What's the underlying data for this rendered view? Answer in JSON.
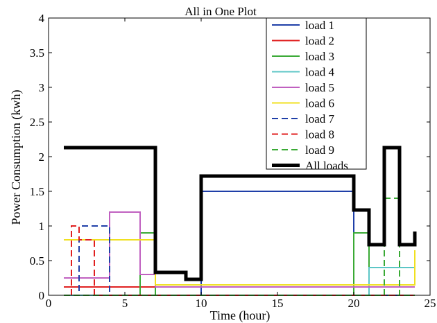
{
  "chart_data": {
    "type": "line",
    "title": "All in One Plot",
    "xlabel": "Time (hour)",
    "ylabel": "Power Consumption (kwh)",
    "xlim": [
      0,
      25
    ],
    "ylim": [
      0,
      4
    ],
    "xticks": [
      0,
      5,
      10,
      15,
      20,
      25
    ],
    "yticks": [
      0,
      0.5,
      1,
      1.5,
      2,
      2.5,
      3,
      3.5,
      4
    ],
    "ytick_labels": [
      "0",
      "0.5",
      "1",
      "1.5",
      "2",
      "2.5",
      "3",
      "3.5",
      "4"
    ],
    "grid": false,
    "legend_position": "top-right",
    "series": [
      {
        "name": "load 1",
        "color": "#1f3fa8",
        "dash": "solid",
        "width": 2,
        "x": [
          1,
          10,
          10,
          20,
          20,
          24
        ],
        "y": [
          0,
          0,
          1.5,
          1.5,
          0,
          0
        ]
      },
      {
        "name": "load 2",
        "color": "#e02020",
        "dash": "solid",
        "width": 2,
        "x": [
          1,
          24
        ],
        "y": [
          0.12,
          0.12
        ]
      },
      {
        "name": "load 3",
        "color": "#3aaa35",
        "dash": "solid",
        "width": 2,
        "x": [
          1,
          6,
          6,
          7,
          7,
          20,
          20,
          21,
          21,
          24
        ],
        "y": [
          0,
          0,
          0.9,
          0.9,
          0,
          0,
          0.9,
          0.9,
          0,
          0
        ]
      },
      {
        "name": "load 4",
        "color": "#5cc6c6",
        "dash": "solid",
        "width": 2,
        "x": [
          1,
          21,
          21,
          24
        ],
        "y": [
          0,
          0,
          0.4,
          0.4
        ]
      },
      {
        "name": "load 5",
        "color": "#c060c0",
        "dash": "solid",
        "width": 2,
        "x": [
          1,
          4,
          4,
          6,
          6,
          7,
          7,
          24
        ],
        "y": [
          0.25,
          0.25,
          1.2,
          1.2,
          0.3,
          0.3,
          0.12,
          0.12
        ]
      },
      {
        "name": "load 6",
        "color": "#f0e020",
        "dash": "solid",
        "width": 2,
        "x": [
          1,
          7,
          7,
          24,
          24
        ],
        "y": [
          0.8,
          0.8,
          0.15,
          0.15,
          0.65
        ]
      },
      {
        "name": "load 7",
        "color": "#1f3fa8",
        "dash": "dash",
        "width": 2,
        "x": [
          1,
          2,
          2,
          4,
          4,
          24
        ],
        "y": [
          0,
          0,
          1.0,
          1.0,
          0,
          0
        ]
      },
      {
        "name": "load 8",
        "color": "#e02020",
        "dash": "dash",
        "width": 2,
        "x": [
          1.5,
          1.5,
          2,
          2,
          3,
          3,
          24
        ],
        "y": [
          0,
          1.0,
          1.0,
          0.8,
          0.8,
          0,
          0
        ]
      },
      {
        "name": "load 9",
        "color": "#3aaa35",
        "dash": "dash",
        "width": 2,
        "x": [
          1,
          22,
          22,
          23,
          23,
          24
        ],
        "y": [
          0,
          0,
          1.4,
          1.4,
          0,
          0
        ]
      },
      {
        "name": "All loads",
        "color": "#000000",
        "dash": "solid",
        "width": 5,
        "x": [
          1,
          7,
          7,
          9,
          9,
          10,
          10,
          20,
          20,
          21,
          21,
          22,
          22,
          23,
          23,
          24,
          24
        ],
        "y": [
          2.13,
          2.13,
          0.33,
          0.33,
          0.23,
          0.23,
          1.72,
          1.72,
          1.23,
          1.23,
          0.73,
          0.73,
          2.13,
          2.13,
          0.73,
          0.73,
          0.92
        ]
      }
    ]
  }
}
